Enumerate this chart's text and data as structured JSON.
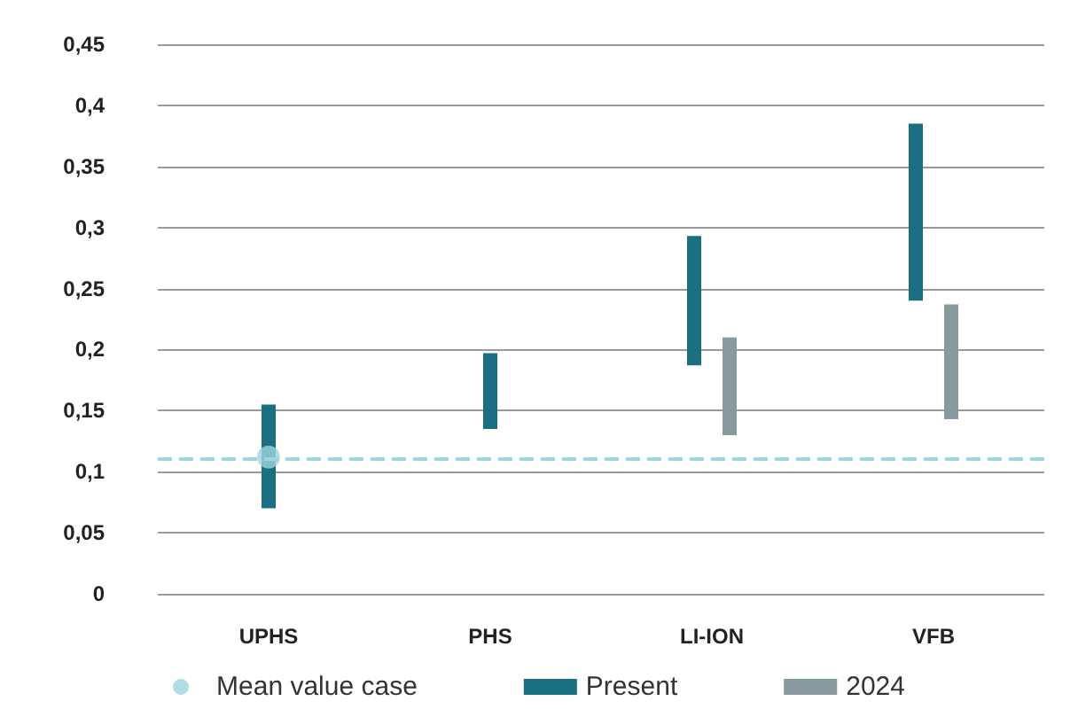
{
  "chart_data": {
    "type": "bar",
    "categories": [
      "UPHS",
      "PHS",
      "LI-ION",
      "VFB"
    ],
    "series": [
      {
        "name": "Mean value case",
        "type": "scatter",
        "color": "#9dd6e0",
        "x": [
          "UPHS"
        ],
        "values": [
          0.112
        ],
        "marker": "circle"
      },
      {
        "name": "Present",
        "color": "#1a6f80",
        "base": [
          0.07,
          0.135,
          0.187,
          0.24
        ],
        "values": [
          0.085,
          0.062,
          0.106,
          0.145
        ]
      },
      {
        "name": "2024",
        "color": "#879b9e",
        "base": [
          null,
          null,
          0.13,
          0.143
        ],
        "values": [
          null,
          null,
          0.08,
          0.094
        ]
      }
    ],
    "ylim": [
      0,
      0.45
    ],
    "yticks": [
      0,
      {
        "value": 0.05,
        "label": "0,05"
      },
      {
        "value": 0.1,
        "label": "0,1"
      },
      {
        "value": 0.15,
        "label": "0,15"
      },
      {
        "value": 0.2,
        "label": "0,2"
      },
      {
        "value": 0.25,
        "label": "0,25"
      },
      {
        "value": 0.3,
        "label": "0,3"
      },
      {
        "value": 0.35,
        "label": "0,35"
      },
      {
        "value": 0.4,
        "label": "0,4"
      },
      {
        "value": 0.45,
        "label": "0,45"
      }
    ],
    "ref_lines": [
      {
        "axis": "y",
        "value": 0.112,
        "label": null,
        "color": "#9dd6e0",
        "line_style": "dashed"
      }
    ],
    "grid": "y",
    "legend": "bottom"
  }
}
